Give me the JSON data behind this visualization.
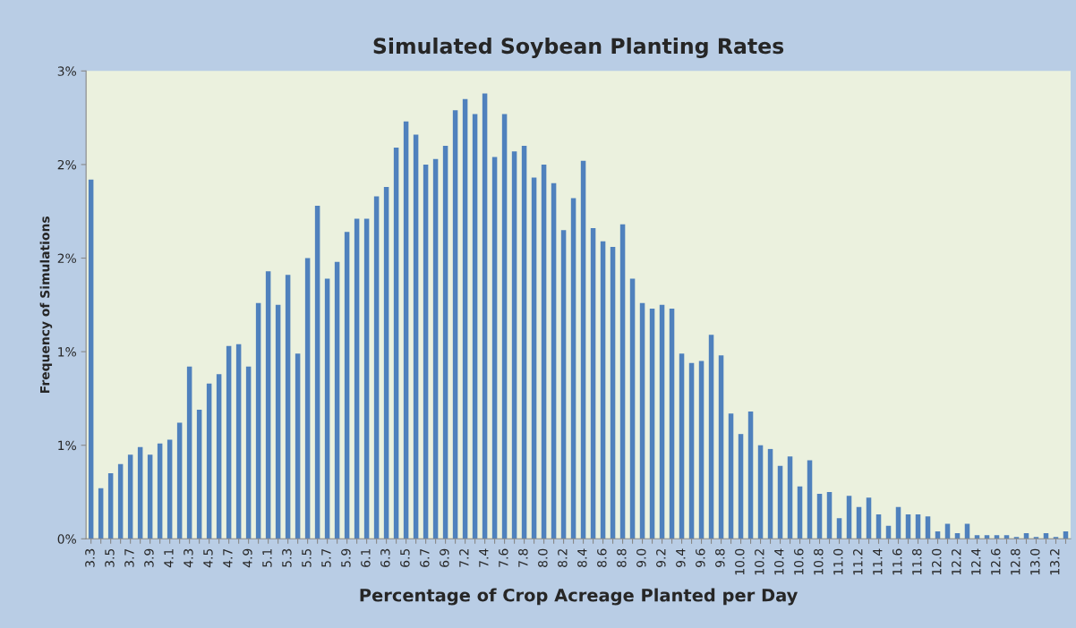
{
  "chart_data": {
    "type": "bar",
    "title": "Simulated Soybean Planting Rates",
    "xlabel": "Percentage of Crop Acreage Planted per Day",
    "ylabel": "Frequency of Simulations",
    "categories": [
      "3.3",
      null,
      "3.5",
      null,
      "3.7",
      null,
      "3.9",
      null,
      "4.1",
      null,
      "4.3",
      null,
      "4.5",
      null,
      "4.7",
      null,
      "4.9",
      null,
      "5.1",
      null,
      "5.3",
      null,
      "5.5",
      null,
      "5.7",
      null,
      "5.9",
      null,
      "6.1",
      null,
      "6.3",
      null,
      "6.5",
      null,
      "6.7",
      null,
      "6.9",
      null,
      "7.2",
      null,
      "7.4",
      null,
      "7.6",
      null,
      "7.8",
      null,
      "8.0",
      null,
      "8.2",
      null,
      "8.4",
      null,
      "8.6",
      null,
      "8.8",
      null,
      "9.0",
      null,
      "9.2",
      null,
      "9.4",
      null,
      "9.6",
      null,
      "9.8",
      null,
      "10.0",
      null,
      "10.2",
      null,
      "10.4",
      null,
      "10.6",
      null,
      "10.8",
      null,
      "11.0",
      null,
      "11.2",
      null,
      "11.4",
      null,
      "11.6",
      null,
      "11.8",
      null,
      "12.0",
      null,
      "12.2",
      null,
      "12.4",
      null,
      "12.6",
      null,
      "12.8",
      null,
      "13.0",
      null,
      "13.2",
      null
    ],
    "values": [
      1.92,
      0.27,
      0.35,
      0.4,
      0.45,
      0.49,
      0.45,
      0.51,
      0.53,
      0.62,
      0.92,
      0.69,
      0.83,
      0.88,
      1.03,
      1.04,
      0.92,
      1.26,
      1.43,
      1.25,
      1.41,
      0.99,
      1.5,
      1.78,
      1.39,
      1.48,
      1.64,
      1.71,
      1.71,
      1.83,
      1.88,
      2.09,
      2.23,
      2.16,
      2.0,
      2.03,
      2.1,
      2.29,
      2.35,
      2.27,
      2.38,
      2.04,
      2.27,
      2.07,
      2.1,
      1.93,
      2.0,
      1.9,
      1.65,
      1.82,
      2.02,
      1.66,
      1.59,
      1.56,
      1.68,
      1.39,
      1.26,
      1.23,
      1.25,
      1.23,
      0.99,
      0.94,
      0.95,
      1.09,
      0.98,
      0.67,
      0.56,
      0.68,
      0.5,
      0.48,
      0.39,
      0.44,
      0.28,
      0.42,
      0.24,
      0.25,
      0.11,
      0.23,
      0.17,
      0.22,
      0.13,
      0.07,
      0.17,
      0.13,
      0.13,
      0.12,
      0.04,
      0.08,
      0.03,
      0.08,
      0.02,
      0.02,
      0.02,
      0.02,
      0.01,
      0.03,
      0.01,
      0.03,
      0.01,
      0.04
    ],
    "color": "#4f81bd",
    "ylim": [
      0,
      2.5
    ],
    "yticks": [
      {
        "value": 0,
        "label": "0%"
      },
      {
        "value": 0.5,
        "label": "1%"
      },
      {
        "value": 1.0,
        "label": "1%"
      },
      {
        "value": 1.5,
        "label": "2%"
      },
      {
        "value": 2.0,
        "label": "2%"
      },
      {
        "value": 2.5,
        "label": "3%"
      }
    ],
    "grid": false,
    "legend": false
  }
}
